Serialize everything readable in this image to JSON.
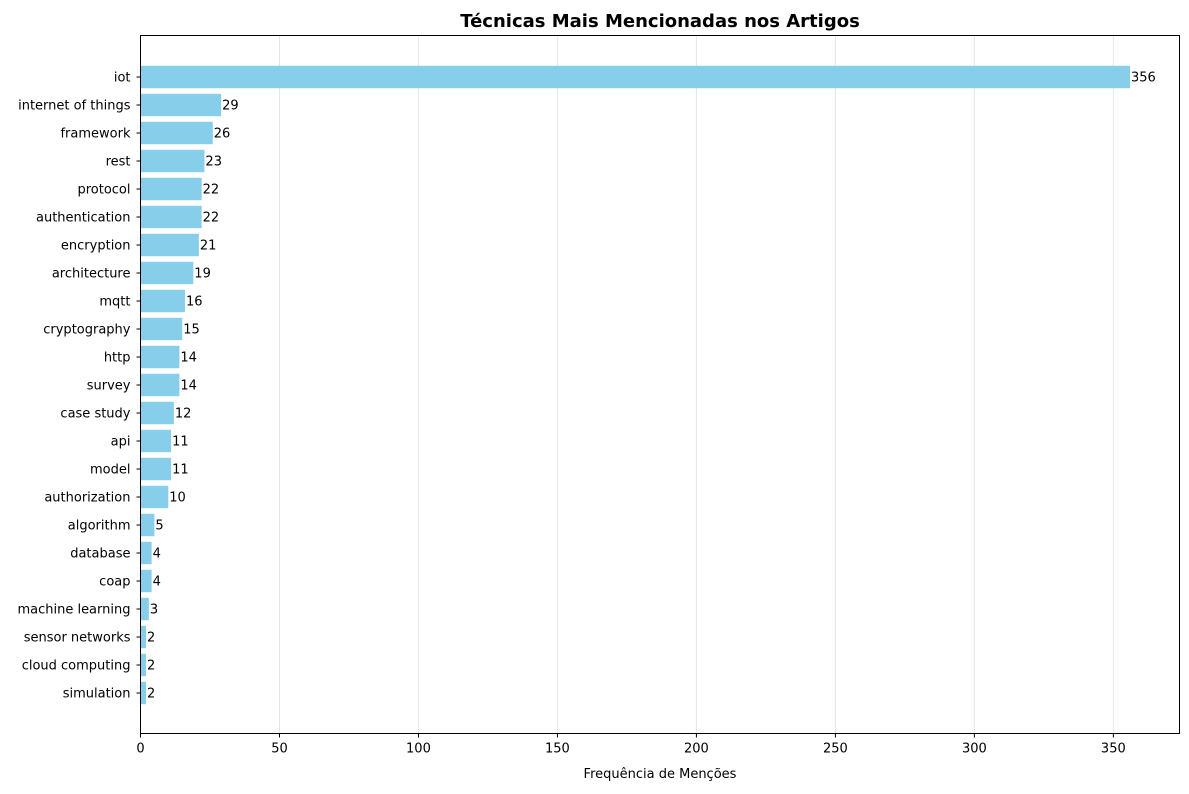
{
  "chart_data": {
    "type": "bar",
    "orientation": "horizontal",
    "title": "Técnicas Mais Mencionadas nos Artigos",
    "xlabel": "Frequência de Menções",
    "ylabel": "",
    "categories": [
      "iot",
      "internet of things",
      "framework",
      "rest",
      "protocol",
      "authentication",
      "encryption",
      "architecture",
      "mqtt",
      "cryptography",
      "http",
      "survey",
      "case study",
      "api",
      "model",
      "authorization",
      "algorithm",
      "database",
      "coap",
      "machine learning",
      "sensor networks",
      "cloud computing",
      "simulation"
    ],
    "values": [
      356,
      29,
      26,
      23,
      22,
      22,
      21,
      19,
      16,
      15,
      14,
      14,
      12,
      11,
      11,
      10,
      5,
      4,
      4,
      3,
      2,
      2,
      2
    ],
    "xlim": [
      0,
      373.8
    ],
    "xticks": [
      0,
      50,
      100,
      150,
      200,
      250,
      300,
      350
    ],
    "grid": "vertical",
    "legend": "none",
    "bar_color": "#87CEEB"
  }
}
